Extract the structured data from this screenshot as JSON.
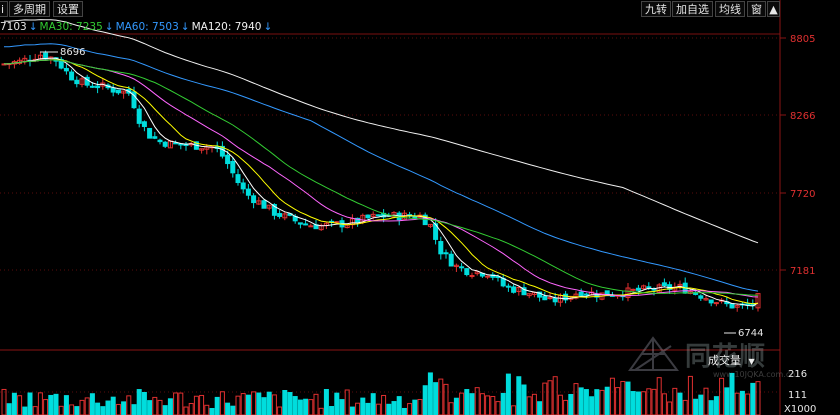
{
  "toolbar": {
    "left_truncated": "i",
    "multi_period": "多周期",
    "settings": "设置",
    "jiuzhuan": "九转",
    "add_watchlist": "加自选",
    "avg_line": "均线",
    "window": "窗"
  },
  "ma_legend": [
    {
      "text": "7103",
      "color": "#e6e6e6"
    },
    {
      "text": "MA30: 7235",
      "color": "#33cc33"
    },
    {
      "text": "MA60: 7503",
      "color": "#3399ff"
    },
    {
      "text": "MA120: 7940",
      "color": "#f0f0f0"
    }
  ],
  "price_axis": {
    "labels": [
      "8805",
      "8266",
      "7720",
      "7181"
    ],
    "color": "#e03030"
  },
  "annotations": {
    "high": "8696",
    "low": "6744"
  },
  "volume_panel": {
    "menu_label": "成交量",
    "levels": [
      "216",
      "111",
      "X1000"
    ]
  },
  "watermark": {
    "brand": "同花顺",
    "url": "www.10JQKA.com.cn"
  },
  "colors": {
    "up": "#e03030",
    "down": "#00dddd",
    "ma5": "#ffffff",
    "ma10": "#ffff00",
    "ma20": "#ff66ff",
    "ma30": "#33cc33",
    "ma60": "#3399ff",
    "ma120": "#f0f0f0"
  }
}
